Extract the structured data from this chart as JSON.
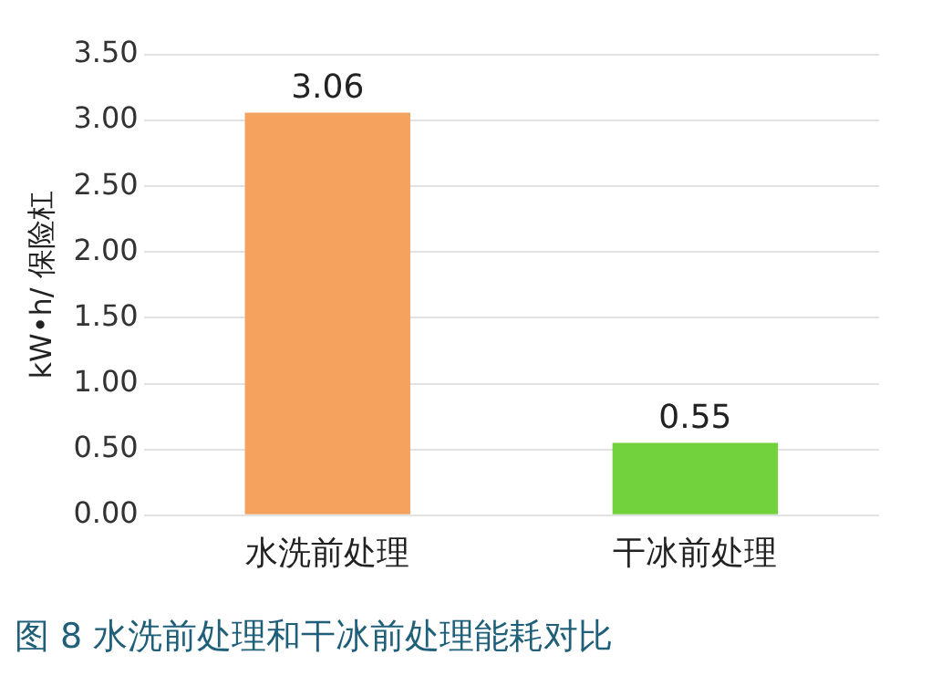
{
  "chart_data": {
    "type": "bar",
    "title": "图 8  水洗前处理和干冰前处理能耗对比",
    "ylabel": "kW•h/ 保险杠",
    "categories": [
      "水洗前处理",
      "干冰前处理"
    ],
    "values": [
      3.06,
      0.55
    ],
    "colors": [
      "#f5a25f",
      "#72d23c"
    ],
    "ylim": [
      0,
      3.5
    ],
    "yticks": [
      {
        "value": 0,
        "label": "0.00"
      },
      {
        "value": 0.5,
        "label": "0.50"
      },
      {
        "value": 1,
        "label": "1.00"
      },
      {
        "value": 1.5,
        "label": "1.50"
      },
      {
        "value": 2,
        "label": "2.00"
      },
      {
        "value": 2.5,
        "label": "2.50"
      },
      {
        "value": 3,
        "label": "3.00"
      },
      {
        "value": 3.5,
        "label": "3.50"
      }
    ],
    "grid": "y",
    "legend": false,
    "data_labels": true
  }
}
